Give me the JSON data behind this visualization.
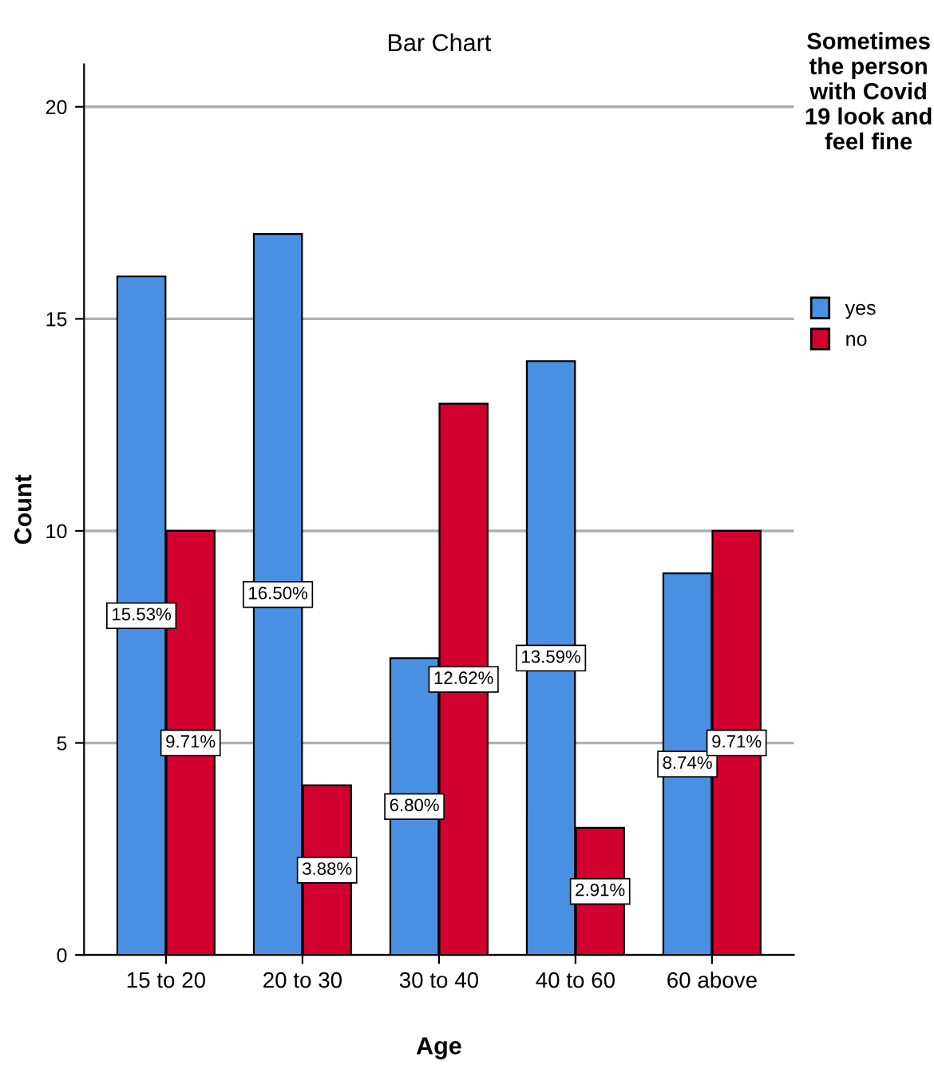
{
  "chart_data": {
    "type": "bar",
    "title": "Bar Chart",
    "xlabel": "Age",
    "ylabel": "Count",
    "legend_title": "Sometimes the person with Covid 19 look and feel fine",
    "categories": [
      "15 to 20",
      "20 to 30",
      "30 to 40",
      "40 to 60",
      "60 above"
    ],
    "series": [
      {
        "name": "yes",
        "color": "#4a90e2",
        "values": [
          16,
          17,
          7,
          14,
          9
        ]
      },
      {
        "name": "no",
        "color": "#d2002e",
        "values": [
          10,
          4,
          13,
          3,
          10
        ]
      }
    ],
    "annotations": [
      "15.53%",
      "16.50%",
      "6.80%",
      "13.59%",
      "8.74%",
      "9.71%",
      "3.88%",
      "12.62%",
      "2.91%",
      "9.71%"
    ],
    "ylim": [
      0,
      21
    ],
    "yticks": [
      0,
      5,
      10,
      15,
      20
    ],
    "grid": "y",
    "legend": "top right"
  }
}
